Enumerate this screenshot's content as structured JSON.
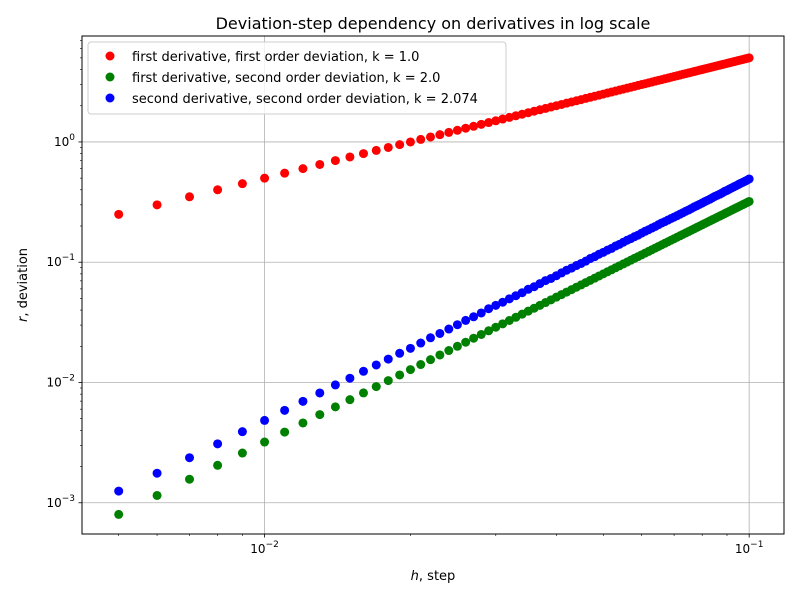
{
  "chart_data": {
    "type": "scatter",
    "title": "Deviation-step dependency on derivatives in log scale",
    "xlabel": {
      "var": "h",
      "rest": ", step"
    },
    "ylabel": {
      "var": "r",
      "rest": ", deviation"
    },
    "xscale": "log",
    "yscale": "log",
    "xlim": [
      0.0042,
      0.118
    ],
    "ylim": [
      0.00055,
      7.6
    ],
    "grid": true,
    "legend_position": "top-left",
    "x_ticks": [
      {
        "value": 0.01,
        "base": "10",
        "exp": "−2"
      },
      {
        "value": 0.1,
        "base": "10",
        "exp": "−1"
      }
    ],
    "y_ticks": [
      {
        "value": 0.001,
        "base": "10",
        "exp": "−3"
      },
      {
        "value": 0.01,
        "base": "10",
        "exp": "−2"
      },
      {
        "value": 0.1,
        "base": "10",
        "exp": "−1"
      },
      {
        "value": 1,
        "base": "10",
        "exp": "0"
      }
    ],
    "x": [
      0.005,
      0.006,
      0.007,
      0.008,
      0.009,
      0.01,
      0.011,
      0.012,
      0.013,
      0.014,
      0.015,
      0.016,
      0.017,
      0.018,
      0.019,
      0.02,
      0.021,
      0.022,
      0.023,
      0.024,
      0.025,
      0.026,
      0.027,
      0.028,
      0.029,
      0.03,
      0.031,
      0.032,
      0.033,
      0.034,
      0.035,
      0.036,
      0.037,
      0.038,
      0.039,
      0.04,
      0.041,
      0.042,
      0.043,
      0.044,
      0.045,
      0.046,
      0.047,
      0.048,
      0.049,
      0.05,
      0.051,
      0.052,
      0.053,
      0.054,
      0.055,
      0.056,
      0.057,
      0.058,
      0.059,
      0.06,
      0.061,
      0.062,
      0.063,
      0.064,
      0.065,
      0.066,
      0.067,
      0.068,
      0.069,
      0.07,
      0.071,
      0.072,
      0.073,
      0.074,
      0.075,
      0.076,
      0.077,
      0.078,
      0.079,
      0.08,
      0.081,
      0.082,
      0.083,
      0.084,
      0.085,
      0.086,
      0.087,
      0.088,
      0.089,
      0.09,
      0.091,
      0.092,
      0.093,
      0.094,
      0.095,
      0.096,
      0.097,
      0.098,
      0.099,
      0.1
    ],
    "series": [
      {
        "name": "first derivative, first order deviation, k = 1.0",
        "color": "#ff0000",
        "values": [
          0.25,
          0.3,
          0.35,
          0.4,
          0.45,
          0.5,
          0.55,
          0.6,
          0.65,
          0.7,
          0.75,
          0.8,
          0.85,
          0.9,
          0.95,
          1.0,
          1.05,
          1.1,
          1.15,
          1.2,
          1.25,
          1.3,
          1.35,
          1.4,
          1.45,
          1.5,
          1.55,
          1.6,
          1.65,
          1.7,
          1.75,
          1.8,
          1.85,
          1.9,
          1.95,
          2.0,
          2.05,
          2.1,
          2.15,
          2.2,
          2.25,
          2.3,
          2.35,
          2.4,
          2.45,
          2.5,
          2.55,
          2.6,
          2.65,
          2.7,
          2.75,
          2.8,
          2.85,
          2.9,
          2.95,
          3.0,
          3.05,
          3.1,
          3.15,
          3.2,
          3.25,
          3.3,
          3.35,
          3.4,
          3.45,
          3.5,
          3.55,
          3.6,
          3.65,
          3.7,
          3.75,
          3.8,
          3.85,
          3.9,
          3.95,
          4.0,
          4.05,
          4.1,
          4.15,
          4.2,
          4.25,
          4.3,
          4.35,
          4.4,
          4.45,
          4.5,
          4.55,
          4.6,
          4.65,
          4.7,
          4.75,
          4.8,
          4.85,
          4.9,
          4.95,
          5.0
        ]
      },
      {
        "name": "first derivative, second order deviation, k = 2.0",
        "color": "#008000",
        "values": [
          0.0008,
          0.00115,
          0.00157,
          0.00205,
          0.00259,
          0.0032,
          0.00387,
          0.00461,
          0.00541,
          0.00627,
          0.0072,
          0.00819,
          0.00925,
          0.01037,
          0.01155,
          0.0128,
          0.01411,
          0.01549,
          0.01693,
          0.01843,
          0.02,
          0.02163,
          0.02333,
          0.02509,
          0.02691,
          0.0288,
          0.03075,
          0.03277,
          0.03485,
          0.03699,
          0.0392,
          0.04147,
          0.04381,
          0.04621,
          0.04867,
          0.0512,
          0.05379,
          0.05645,
          0.05917,
          0.06195,
          0.0648,
          0.06771,
          0.07069,
          0.07373,
          0.07683,
          0.08,
          0.08323,
          0.08653,
          0.08989,
          0.09331,
          0.0968,
          0.10035,
          0.10397,
          0.10765,
          0.11139,
          0.1152,
          0.11907,
          0.12301,
          0.12701,
          0.13107,
          0.1352,
          0.13939,
          0.14365,
          0.14797,
          0.15235,
          0.1568,
          0.16131,
          0.16589,
          0.17053,
          0.17523,
          0.18,
          0.18483,
          0.18973,
          0.19469,
          0.19971,
          0.2048,
          0.20995,
          0.21517,
          0.22045,
          0.22579,
          0.2312,
          0.23667,
          0.24221,
          0.24781,
          0.25347,
          0.2592,
          0.26499,
          0.27085,
          0.27677,
          0.28275,
          0.2888,
          0.29491,
          0.30109,
          0.30733,
          0.31363,
          0.32
        ]
      },
      {
        "name": "second derivative, second order deviation, k = 2.074",
        "color": "#0000ff",
        "values": [
          0.00125,
          0.00176,
          0.00237,
          0.00309,
          0.0039,
          0.00484,
          0.00587,
          0.00697,
          0.00818,
          0.00955,
          0.01085,
          0.01239,
          0.01398,
          0.01566,
          0.01749,
          0.01922,
          0.02128,
          0.02353,
          0.02557,
          0.02783,
          0.03023,
          0.03283,
          0.03517,
          0.03785,
          0.04107,
          0.0438,
          0.04651,
          0.04961,
          0.05264,
          0.05579,
          0.05954,
          0.06259,
          0.06644,
          0.07035,
          0.07328,
          0.07726,
          0.08151,
          0.08581,
          0.08938,
          0.0938,
          0.09762,
          0.10209,
          0.10732,
          0.11117,
          0.11658,
          0.12085,
          0.12605,
          0.1302,
          0.13636,
          0.14082,
          0.14658,
          0.15243,
          0.15714,
          0.16315,
          0.16815,
          0.17474,
          0.18087,
          0.18619,
          0.19249,
          0.19817,
          0.20528,
          0.21195,
          0.21763,
          0.22432,
          0.23091,
          0.23718,
          0.24378,
          0.25095,
          0.25805,
          0.26561,
          0.27186,
          0.27981,
          0.28844,
          0.29523,
          0.30296,
          0.31047,
          0.3193,
          0.32673,
          0.33434,
          0.34395,
          0.35288,
          0.36037,
          0.36815,
          0.37727,
          0.38782,
          0.39546,
          0.40487,
          0.41443,
          0.42376,
          0.43233,
          0.44268,
          0.45277,
          0.46128,
          0.47086,
          0.48078,
          0.49206
        ]
      }
    ]
  }
}
